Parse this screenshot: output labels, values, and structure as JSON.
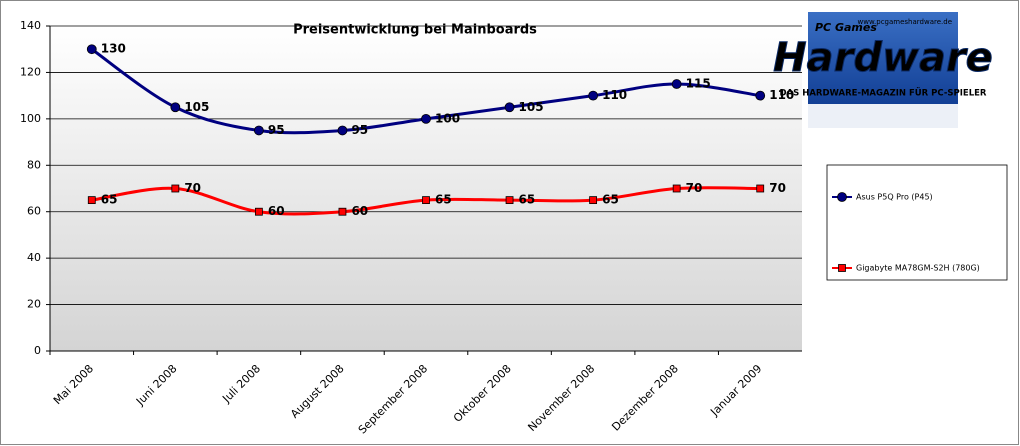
{
  "chart_data": {
    "type": "line",
    "title": "Preisentwicklung bei Mainboards",
    "categories": [
      "Mai 2008",
      "Juni 2008",
      "Juli 2008",
      "August 2008",
      "September 2008",
      "Oktober 2008",
      "November 2008",
      "Dezember 2008",
      "Januar 2009"
    ],
    "series": [
      {
        "name": "Asus P5Q Pro (P45)",
        "color": "#000080",
        "marker": "circle",
        "values": [
          130,
          105,
          95,
          95,
          100,
          105,
          110,
          115,
          110
        ]
      },
      {
        "name": "Gigabyte  MA78GM-S2H (780G)",
        "color": "#ff0000",
        "marker": "square",
        "values": [
          65,
          70,
          60,
          60,
          65,
          65,
          65,
          70,
          70
        ]
      }
    ],
    "ylim": [
      0,
      140
    ],
    "yticks": [
      0,
      20,
      40,
      60,
      80,
      100,
      120,
      140
    ],
    "grid": true,
    "smooth": true,
    "legend": "right",
    "logo": {
      "brand_top": "PC Games",
      "brand": "Hardware",
      "url": "www.pcgameshardware.de",
      "tagline": "DAS HARDWARE-MAGAZIN FÜR PC-SPIELER"
    }
  }
}
